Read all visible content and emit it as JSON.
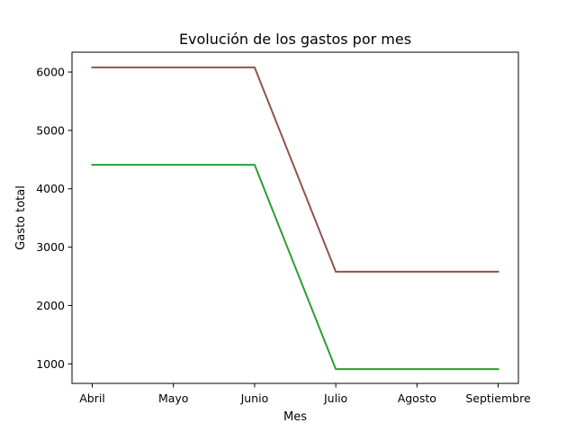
{
  "chart_data": {
    "type": "line",
    "title": "Evolución de los gastos por mes",
    "xlabel": "Mes",
    "ylabel": "Gasto total",
    "categories": [
      "Abril",
      "Mayo",
      "Junio",
      "Julio",
      "Agosto",
      "Septiembre"
    ],
    "yticks": [
      1000,
      2000,
      3000,
      4000,
      5000,
      6000
    ],
    "ylim": [
      665,
      6340
    ],
    "grid": false,
    "legend": "none",
    "series": [
      {
        "values": [
          6080,
          6080,
          6080,
          2580,
          2580,
          2580
        ],
        "color": "#8c564b"
      },
      {
        "values": [
          4410,
          4410,
          4410,
          910,
          910,
          910
        ],
        "color": "#2ca02c"
      }
    ]
  }
}
